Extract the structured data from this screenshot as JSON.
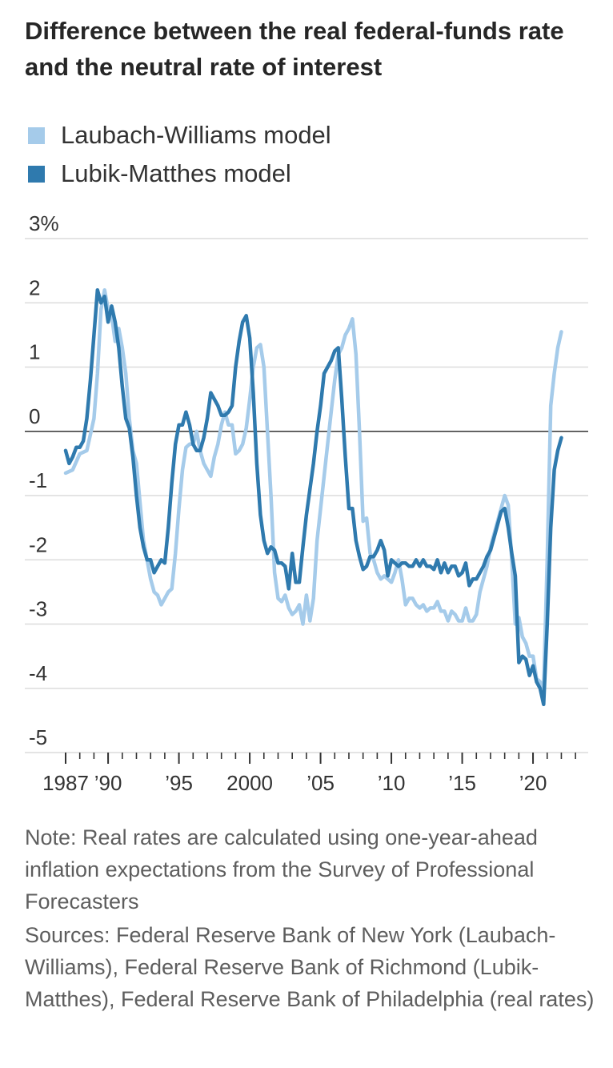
{
  "chart_data": {
    "type": "line",
    "title": "Difference between the real federal-funds rate and the neutral rate of interest",
    "ylim": [
      -5,
      3
    ],
    "y_ticks": [
      {
        "value": 3,
        "label": "3%"
      },
      {
        "value": 2,
        "label": "2"
      },
      {
        "value": 1,
        "label": "1"
      },
      {
        "value": 0,
        "label": "0"
      },
      {
        "value": -1,
        "label": "-1"
      },
      {
        "value": -2,
        "label": "-2"
      },
      {
        "value": -3,
        "label": "-3"
      },
      {
        "value": -4,
        "label": "-4"
      },
      {
        "value": -5,
        "label": "-5"
      }
    ],
    "xlim": [
      1987,
      2023.5
    ],
    "x_ticks": [
      {
        "value": 1987,
        "label": "1987"
      },
      {
        "value": 1990,
        "label": "’90"
      },
      {
        "value": 1995,
        "label": "’95"
      },
      {
        "value": 2000,
        "label": "2000"
      },
      {
        "value": 2005,
        "label": "’05"
      },
      {
        "value": 2010,
        "label": "’10"
      },
      {
        "value": 2015,
        "label": "’15"
      },
      {
        "value": 2020,
        "label": "’20"
      }
    ],
    "grid": true,
    "legend_position": "top-left",
    "series": [
      {
        "name": "Laubach-Williams model",
        "color": "#a5cbea",
        "points": [
          [
            1987.0,
            -0.65
          ],
          [
            1987.5,
            -0.6
          ],
          [
            1988.0,
            -0.35
          ],
          [
            1988.5,
            -0.3
          ],
          [
            1989.0,
            0.2
          ],
          [
            1989.25,
            0.9
          ],
          [
            1989.5,
            1.9
          ],
          [
            1989.75,
            2.2
          ],
          [
            1990.0,
            1.9
          ],
          [
            1990.25,
            1.8
          ],
          [
            1990.5,
            1.4
          ],
          [
            1990.75,
            1.6
          ],
          [
            1991.0,
            1.3
          ],
          [
            1991.25,
            0.9
          ],
          [
            1991.5,
            0.2
          ],
          [
            1991.75,
            -0.3
          ],
          [
            1992.0,
            -0.5
          ],
          [
            1992.5,
            -1.7
          ],
          [
            1993.0,
            -2.3
          ],
          [
            1993.25,
            -2.5
          ],
          [
            1993.5,
            -2.55
          ],
          [
            1993.75,
            -2.7
          ],
          [
            1994.0,
            -2.6
          ],
          [
            1994.25,
            -2.5
          ],
          [
            1994.5,
            -2.45
          ],
          [
            1994.75,
            -1.9
          ],
          [
            1995.0,
            -1.2
          ],
          [
            1995.25,
            -0.6
          ],
          [
            1995.5,
            -0.25
          ],
          [
            1995.75,
            -0.2
          ],
          [
            1996.0,
            -0.2
          ],
          [
            1996.25,
            0.0
          ],
          [
            1996.5,
            -0.3
          ],
          [
            1996.75,
            -0.5
          ],
          [
            1997.0,
            -0.6
          ],
          [
            1997.25,
            -0.7
          ],
          [
            1997.5,
            -0.4
          ],
          [
            1997.75,
            -0.2
          ],
          [
            1998.0,
            0.1
          ],
          [
            1998.25,
            0.3
          ],
          [
            1998.5,
            0.1
          ],
          [
            1998.75,
            0.1
          ],
          [
            1999.0,
            -0.35
          ],
          [
            1999.25,
            -0.3
          ],
          [
            1999.5,
            -0.2
          ],
          [
            1999.75,
            0.05
          ],
          [
            2000.0,
            0.5
          ],
          [
            2000.25,
            1.0
          ],
          [
            2000.5,
            1.3
          ],
          [
            2000.75,
            1.35
          ],
          [
            2001.0,
            1.0
          ],
          [
            2001.25,
            0.0
          ],
          [
            2001.5,
            -1.0
          ],
          [
            2001.75,
            -2.2
          ],
          [
            2002.0,
            -2.6
          ],
          [
            2002.25,
            -2.65
          ],
          [
            2002.5,
            -2.55
          ],
          [
            2002.75,
            -2.75
          ],
          [
            2003.0,
            -2.85
          ],
          [
            2003.25,
            -2.8
          ],
          [
            2003.5,
            -2.7
          ],
          [
            2003.75,
            -3.0
          ],
          [
            2004.0,
            -2.55
          ],
          [
            2004.25,
            -2.95
          ],
          [
            2004.5,
            -2.6
          ],
          [
            2004.75,
            -1.7
          ],
          [
            2005.0,
            -1.2
          ],
          [
            2005.25,
            -0.7
          ],
          [
            2005.5,
            -0.2
          ],
          [
            2005.75,
            0.3
          ],
          [
            2006.0,
            0.8
          ],
          [
            2006.25,
            1.2
          ],
          [
            2006.5,
            1.3
          ],
          [
            2006.75,
            1.5
          ],
          [
            2007.0,
            1.6
          ],
          [
            2007.25,
            1.75
          ],
          [
            2007.5,
            1.2
          ],
          [
            2007.75,
            0.0
          ],
          [
            2008.0,
            -1.4
          ],
          [
            2008.25,
            -1.35
          ],
          [
            2008.5,
            -1.9
          ],
          [
            2008.75,
            -2.0
          ],
          [
            2009.0,
            -2.2
          ],
          [
            2009.25,
            -2.3
          ],
          [
            2009.5,
            -2.25
          ],
          [
            2009.75,
            -2.3
          ],
          [
            2010.0,
            -2.35
          ],
          [
            2010.25,
            -2.2
          ],
          [
            2010.5,
            -2.0
          ],
          [
            2010.75,
            -2.3
          ],
          [
            2011.0,
            -2.7
          ],
          [
            2011.25,
            -2.6
          ],
          [
            2011.5,
            -2.6
          ],
          [
            2011.75,
            -2.7
          ],
          [
            2012.0,
            -2.75
          ],
          [
            2012.25,
            -2.7
          ],
          [
            2012.5,
            -2.8
          ],
          [
            2012.75,
            -2.75
          ],
          [
            2013.0,
            -2.75
          ],
          [
            2013.25,
            -2.65
          ],
          [
            2013.5,
            -2.8
          ],
          [
            2013.75,
            -2.8
          ],
          [
            2014.0,
            -2.95
          ],
          [
            2014.25,
            -2.8
          ],
          [
            2014.5,
            -2.85
          ],
          [
            2014.75,
            -2.95
          ],
          [
            2015.0,
            -2.95
          ],
          [
            2015.25,
            -2.75
          ],
          [
            2015.5,
            -2.95
          ],
          [
            2015.75,
            -2.95
          ],
          [
            2016.0,
            -2.85
          ],
          [
            2016.25,
            -2.5
          ],
          [
            2016.5,
            -2.3
          ],
          [
            2016.75,
            -2.1
          ],
          [
            2017.0,
            -1.8
          ],
          [
            2017.25,
            -1.6
          ],
          [
            2017.5,
            -1.4
          ],
          [
            2017.75,
            -1.2
          ],
          [
            2018.0,
            -1.0
          ],
          [
            2018.25,
            -1.15
          ],
          [
            2018.5,
            -2.0
          ],
          [
            2018.75,
            -3.0
          ],
          [
            2019.0,
            -2.9
          ],
          [
            2019.25,
            -3.2
          ],
          [
            2019.5,
            -3.3
          ],
          [
            2019.75,
            -3.5
          ],
          [
            2020.0,
            -3.5
          ],
          [
            2020.25,
            -3.85
          ],
          [
            2020.5,
            -3.9
          ],
          [
            2020.75,
            -4.0
          ],
          [
            2021.0,
            -2.0
          ],
          [
            2021.25,
            0.4
          ],
          [
            2021.5,
            0.9
          ],
          [
            2021.75,
            1.3
          ],
          [
            2022.0,
            1.55
          ]
        ]
      },
      {
        "name": "Lubik-Matthes model",
        "color": "#2f7aae",
        "points": [
          [
            1987.0,
            -0.3
          ],
          [
            1987.25,
            -0.5
          ],
          [
            1987.5,
            -0.4
          ],
          [
            1987.75,
            -0.25
          ],
          [
            1988.0,
            -0.25
          ],
          [
            1988.25,
            -0.15
          ],
          [
            1988.5,
            0.2
          ],
          [
            1988.75,
            0.8
          ],
          [
            1989.0,
            1.5
          ],
          [
            1989.25,
            2.2
          ],
          [
            1989.5,
            2.0
          ],
          [
            1989.75,
            2.1
          ],
          [
            1990.0,
            1.7
          ],
          [
            1990.25,
            1.95
          ],
          [
            1990.5,
            1.7
          ],
          [
            1990.75,
            1.3
          ],
          [
            1991.0,
            0.7
          ],
          [
            1991.25,
            0.2
          ],
          [
            1991.5,
            0.05
          ],
          [
            1991.75,
            -0.4
          ],
          [
            1992.0,
            -1.0
          ],
          [
            1992.25,
            -1.5
          ],
          [
            1992.5,
            -1.8
          ],
          [
            1992.75,
            -2.0
          ],
          [
            1993.0,
            -2.0
          ],
          [
            1993.25,
            -2.2
          ],
          [
            1993.5,
            -2.1
          ],
          [
            1993.75,
            -2.0
          ],
          [
            1994.0,
            -2.05
          ],
          [
            1994.25,
            -1.5
          ],
          [
            1994.5,
            -0.8
          ],
          [
            1994.75,
            -0.2
          ],
          [
            1995.0,
            0.1
          ],
          [
            1995.25,
            0.1
          ],
          [
            1995.5,
            0.3
          ],
          [
            1995.75,
            0.1
          ],
          [
            1996.0,
            -0.2
          ],
          [
            1996.25,
            -0.3
          ],
          [
            1996.5,
            -0.3
          ],
          [
            1996.75,
            -0.1
          ],
          [
            1997.0,
            0.2
          ],
          [
            1997.25,
            0.6
          ],
          [
            1997.5,
            0.5
          ],
          [
            1997.75,
            0.4
          ],
          [
            1998.0,
            0.25
          ],
          [
            1998.25,
            0.25
          ],
          [
            1998.5,
            0.3
          ],
          [
            1998.75,
            0.4
          ],
          [
            1999.0,
            1.0
          ],
          [
            1999.25,
            1.4
          ],
          [
            1999.5,
            1.7
          ],
          [
            1999.75,
            1.8
          ],
          [
            2000.0,
            1.45
          ],
          [
            2000.25,
            0.6
          ],
          [
            2000.5,
            -0.5
          ],
          [
            2000.75,
            -1.3
          ],
          [
            2001.0,
            -1.7
          ],
          [
            2001.25,
            -1.9
          ],
          [
            2001.5,
            -1.8
          ],
          [
            2001.75,
            -1.85
          ],
          [
            2002.0,
            -2.05
          ],
          [
            2002.25,
            -2.05
          ],
          [
            2002.5,
            -2.1
          ],
          [
            2002.75,
            -2.45
          ],
          [
            2003.0,
            -1.9
          ],
          [
            2003.25,
            -2.35
          ],
          [
            2003.5,
            -2.35
          ],
          [
            2003.75,
            -1.8
          ],
          [
            2004.0,
            -1.3
          ],
          [
            2004.25,
            -0.9
          ],
          [
            2004.5,
            -0.5
          ],
          [
            2004.75,
            0.0
          ],
          [
            2005.0,
            0.4
          ],
          [
            2005.25,
            0.9
          ],
          [
            2005.5,
            1.0
          ],
          [
            2005.75,
            1.1
          ],
          [
            2006.0,
            1.25
          ],
          [
            2006.25,
            1.3
          ],
          [
            2006.5,
            0.5
          ],
          [
            2006.75,
            -0.4
          ],
          [
            2007.0,
            -1.2
          ],
          [
            2007.25,
            -1.2
          ],
          [
            2007.5,
            -1.7
          ],
          [
            2007.75,
            -1.95
          ],
          [
            2008.0,
            -2.15
          ],
          [
            2008.25,
            -2.1
          ],
          [
            2008.5,
            -1.95
          ],
          [
            2008.75,
            -1.95
          ],
          [
            2009.0,
            -1.85
          ],
          [
            2009.25,
            -1.7
          ],
          [
            2009.5,
            -1.85
          ],
          [
            2009.75,
            -2.25
          ],
          [
            2010.0,
            -2.0
          ],
          [
            2010.25,
            -2.05
          ],
          [
            2010.5,
            -2.1
          ],
          [
            2010.75,
            -2.05
          ],
          [
            2011.0,
            -2.05
          ],
          [
            2011.25,
            -2.1
          ],
          [
            2011.5,
            -2.1
          ],
          [
            2011.75,
            -2.0
          ],
          [
            2012.0,
            -2.1
          ],
          [
            2012.25,
            -2.0
          ],
          [
            2012.5,
            -2.1
          ],
          [
            2012.75,
            -2.1
          ],
          [
            2013.0,
            -2.15
          ],
          [
            2013.25,
            -2.0
          ],
          [
            2013.5,
            -2.2
          ],
          [
            2013.75,
            -2.05
          ],
          [
            2014.0,
            -2.2
          ],
          [
            2014.25,
            -2.1
          ],
          [
            2014.5,
            -2.1
          ],
          [
            2014.75,
            -2.25
          ],
          [
            2015.0,
            -2.2
          ],
          [
            2015.25,
            -2.05
          ],
          [
            2015.5,
            -2.4
          ],
          [
            2015.75,
            -2.3
          ],
          [
            2016.0,
            -2.3
          ],
          [
            2016.25,
            -2.2
          ],
          [
            2016.5,
            -2.1
          ],
          [
            2016.75,
            -1.95
          ],
          [
            2017.0,
            -1.85
          ],
          [
            2017.25,
            -1.65
          ],
          [
            2017.5,
            -1.45
          ],
          [
            2017.75,
            -1.25
          ],
          [
            2018.0,
            -1.2
          ],
          [
            2018.25,
            -1.5
          ],
          [
            2018.5,
            -1.9
          ],
          [
            2018.75,
            -2.25
          ],
          [
            2019.0,
            -3.6
          ],
          [
            2019.25,
            -3.5
          ],
          [
            2019.5,
            -3.55
          ],
          [
            2019.75,
            -3.8
          ],
          [
            2020.0,
            -3.65
          ],
          [
            2020.25,
            -3.9
          ],
          [
            2020.5,
            -4.0
          ],
          [
            2020.75,
            -4.25
          ],
          [
            2021.0,
            -3.0
          ],
          [
            2021.25,
            -1.5
          ],
          [
            2021.5,
            -0.6
          ],
          [
            2021.75,
            -0.3
          ],
          [
            2022.0,
            -0.1
          ]
        ]
      }
    ]
  },
  "note": "Note: Real rates are calculated using one-year-ahead inflation expectations from the Survey of Professional Forecasters",
  "sources": "Sources: Federal Reserve Bank of New York (Laubach-Williams), Federal Reserve Bank of Richmond (Lubik-Matthes), Federal Reserve Bank of Philadelphia (real rates)"
}
